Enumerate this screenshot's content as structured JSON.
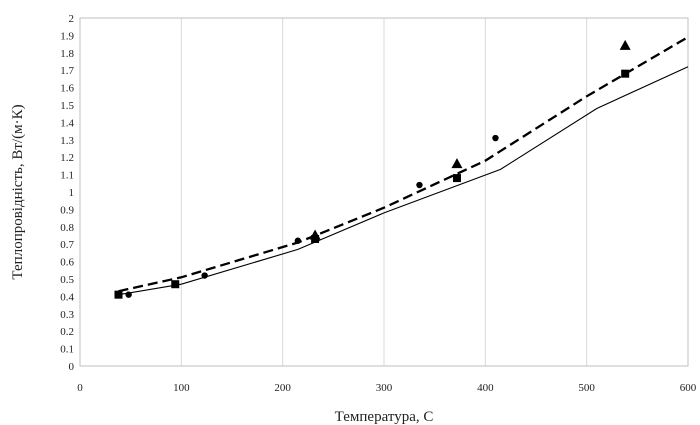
{
  "chart_data": {
    "type": "scatter",
    "xlabel": "Температура, С",
    "ylabel": "Теплопровідність, Вт/(м·К)",
    "xlim": [
      0,
      600
    ],
    "ylim": [
      0,
      2
    ],
    "xticks": [
      0,
      100,
      200,
      300,
      400,
      500,
      600
    ],
    "yticks": [
      0,
      0.1,
      0.2,
      0.3,
      0.4,
      0.5,
      0.6,
      0.7,
      0.8,
      0.9,
      1,
      1.1,
      1.2,
      1.3,
      1.4,
      1.5,
      1.6,
      1.7,
      1.8,
      1.9,
      2
    ],
    "grid": "vertical",
    "legend": "none",
    "lines": [
      {
        "style": "solid",
        "color": "#000000",
        "x": [
          38,
          100,
          215,
          300,
          415,
          510,
          600
        ],
        "y": [
          0.41,
          0.47,
          0.67,
          0.88,
          1.13,
          1.48,
          1.72
        ]
      },
      {
        "style": "dashed",
        "color": "#000000",
        "x": [
          38,
          100,
          215,
          300,
          400,
          500,
          600
        ],
        "y": [
          0.43,
          0.51,
          0.71,
          0.91,
          1.18,
          1.55,
          1.89
        ]
      }
    ],
    "markers": [
      {
        "shape": "circle",
        "color": "#000000",
        "x": [
          48,
          123,
          215,
          335,
          410
        ],
        "y": [
          0.41,
          0.52,
          0.72,
          1.04,
          1.31
        ]
      },
      {
        "shape": "square",
        "color": "#000000",
        "x": [
          38,
          94,
          232,
          372,
          538
        ],
        "y": [
          0.41,
          0.47,
          0.73,
          1.08,
          1.68
        ]
      },
      {
        "shape": "triangle",
        "color": "#000000",
        "x": [
          232,
          372,
          538
        ],
        "y": [
          0.75,
          1.16,
          1.84
        ]
      }
    ]
  }
}
